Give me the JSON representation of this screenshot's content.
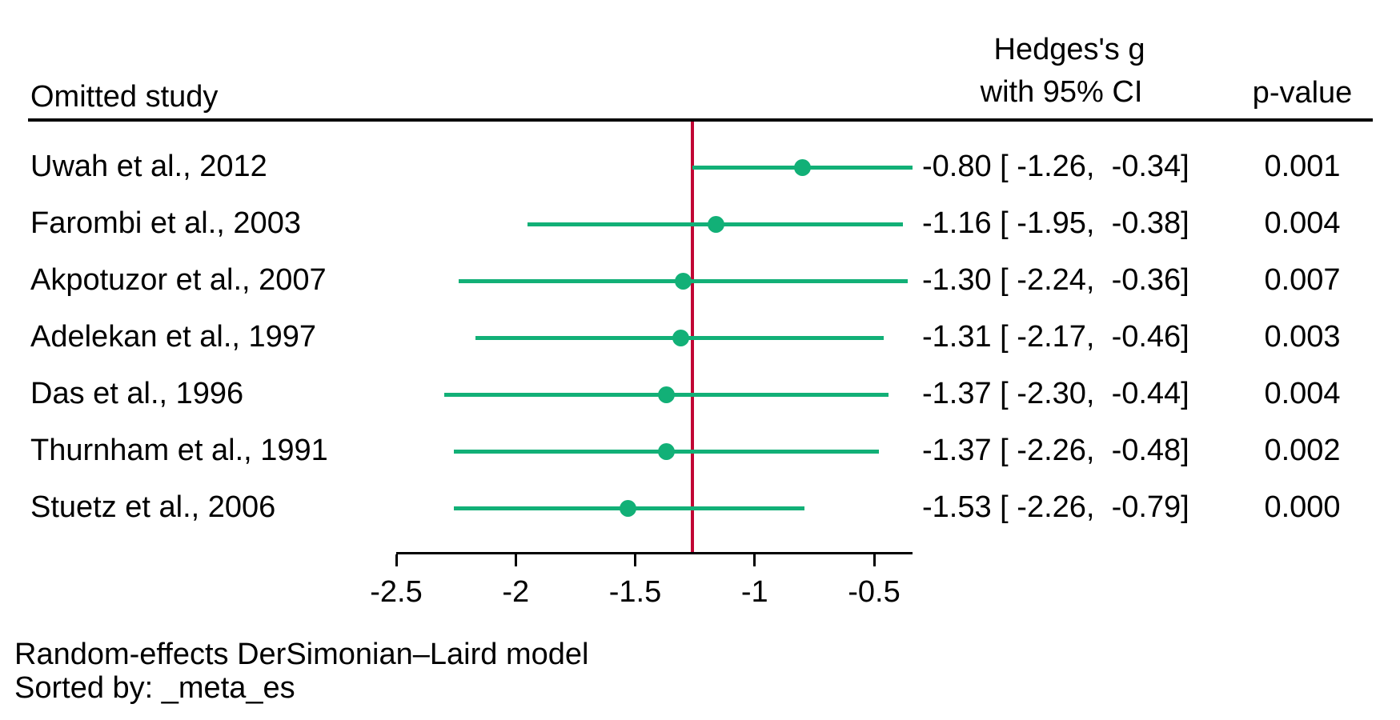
{
  "header": {
    "omitted_study": "Omitted study",
    "effect_col_line1": "Hedges's g",
    "effect_col_line2": "with 95% CI",
    "pvalue_col": "p-value"
  },
  "footer": {
    "model_note": "Random-effects DerSimonian–Laird model",
    "sort_note": "Sorted by: _meta_es"
  },
  "colors": {
    "ci_green": "#12b077",
    "overall_line_red": "#c10534",
    "text_black": "#000000"
  },
  "chart_data": {
    "type": "forest",
    "effect_label": "Hedges's g",
    "ci_level": "95% CI",
    "overall_effect": -1.26,
    "xaxis": {
      "min": -2.5,
      "max": -0.34,
      "ticks": [
        -2.5,
        -2,
        -1.5,
        -1,
        -0.5
      ],
      "tick_labels": [
        "-2.5",
        "-2",
        "-1.5",
        "-1",
        "-0.5"
      ]
    },
    "studies": [
      {
        "label": "Uwah et al., 2012",
        "es": -0.8,
        "ci_low": -1.26,
        "ci_high": -0.34,
        "ci_text": "-0.80 [ -1.26,  -0.34]",
        "p_text": "0.001"
      },
      {
        "label": "Farombi et al., 2003",
        "es": -1.16,
        "ci_low": -1.95,
        "ci_high": -0.38,
        "ci_text": "-1.16 [ -1.95,  -0.38]",
        "p_text": "0.004"
      },
      {
        "label": "Akpotuzor et al., 2007",
        "es": -1.3,
        "ci_low": -2.24,
        "ci_high": -0.36,
        "ci_text": "-1.30 [ -2.24,  -0.36]",
        "p_text": "0.007"
      },
      {
        "label": "Adelekan et al., 1997",
        "es": -1.31,
        "ci_low": -2.17,
        "ci_high": -0.46,
        "ci_text": "-1.31 [ -2.17,  -0.46]",
        "p_text": "0.003"
      },
      {
        "label": "Das et al., 1996",
        "es": -1.37,
        "ci_low": -2.3,
        "ci_high": -0.44,
        "ci_text": "-1.37 [ -2.30,  -0.44]",
        "p_text": "0.004"
      },
      {
        "label": "Thurnham et al., 1991",
        "es": -1.37,
        "ci_low": -2.26,
        "ci_high": -0.48,
        "ci_text": "-1.37 [ -2.26,  -0.48]",
        "p_text": "0.002"
      },
      {
        "label": "Stuetz et al., 2006",
        "es": -1.53,
        "ci_low": -2.26,
        "ci_high": -0.79,
        "ci_text": "-1.53 [ -2.26,  -0.79]",
        "p_text": "0.000"
      }
    ]
  }
}
